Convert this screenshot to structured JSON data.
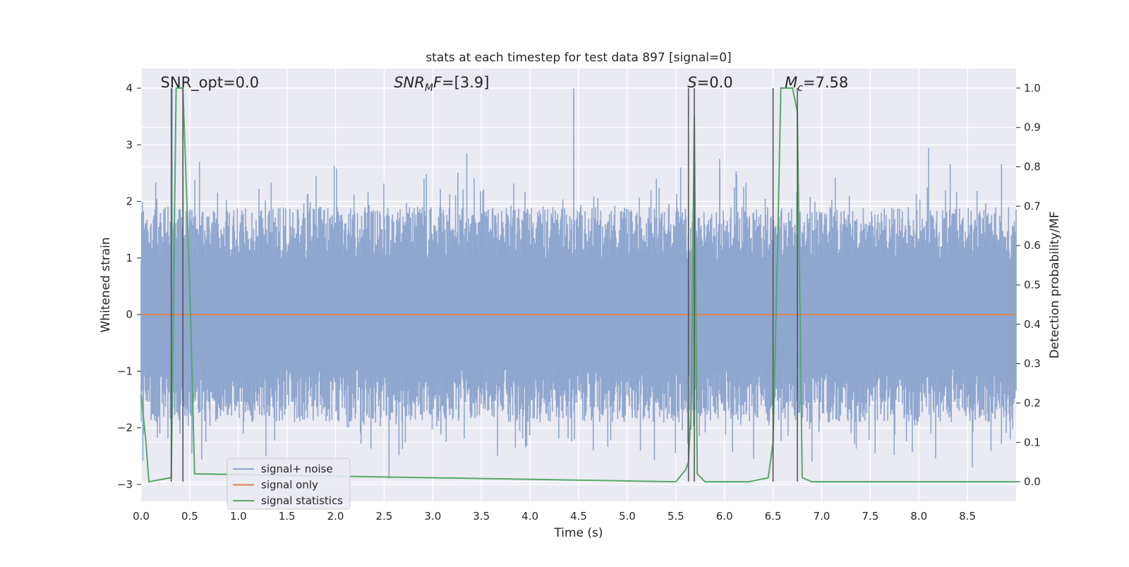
{
  "chart_data": {
    "type": "line",
    "title": "stats at each timestep for test data 897 [signal=0]",
    "xlabel": "Time (s)",
    "ylabel_left": "Whitened strain",
    "ylabel_right": "Detection probability/MF",
    "xlim": [
      0.0,
      9.0
    ],
    "ylim_left": [
      -3.3,
      4.35
    ],
    "ylim_right": [
      -0.05,
      1.05
    ],
    "x_ticks": [
      0.0,
      0.5,
      1.0,
      1.5,
      2.0,
      2.5,
      3.0,
      3.5,
      4.0,
      4.5,
      5.0,
      5.5,
      6.0,
      6.5,
      7.0,
      7.5,
      8.0,
      8.5
    ],
    "x_tick_labels": [
      "0.0",
      "0.5",
      "1.0",
      "1.5",
      "2.0",
      "2.5",
      "3.0",
      "3.5",
      "4.0",
      "4.5",
      "5.0",
      "5.5",
      "6.0",
      "6.5",
      "7.0",
      "7.5",
      "8.0",
      "8.5"
    ],
    "y_left_ticks": [
      -3,
      -2,
      -1,
      0,
      1,
      2,
      3,
      4
    ],
    "y_left_tick_labels": [
      "−3",
      "−2",
      "−1",
      "0",
      "1",
      "2",
      "3",
      "4"
    ],
    "y_right_ticks": [
      0.0,
      0.1,
      0.2,
      0.3,
      0.4,
      0.5,
      0.6,
      0.7,
      0.8,
      0.9,
      1.0
    ],
    "y_right_tick_labels": [
      "0.0",
      "0.1",
      "0.2",
      "0.3",
      "0.4",
      "0.5",
      "0.6",
      "0.7",
      "0.8",
      "0.9",
      "1.0"
    ],
    "grid": true,
    "legend_placement": "lower-left",
    "annotations": [
      {
        "label": "SNR_opt=0.0",
        "x": 0.2
      },
      {
        "label": "SNR_MF=[3.9]",
        "x": 2.6,
        "math": true,
        "base": "SNR",
        "sub": "M",
        "tail": "F=[3.9]"
      },
      {
        "label": "S=0.0",
        "x": 5.62,
        "math": true,
        "base": "S",
        "sub": "",
        "tail": "=0.0"
      },
      {
        "label": "M_c=7.58",
        "x": 6.62,
        "math": true,
        "base": "M",
        "sub": "c",
        "tail": "=7.58"
      }
    ],
    "vertical_markers": [
      0.31,
      0.43,
      5.63,
      5.69,
      6.5,
      6.75
    ],
    "series": [
      {
        "name": "signal+ noise",
        "color": "#8fa6cf",
        "kind": "noise",
        "axis": "left",
        "x_range": [
          0.0,
          9.0
        ],
        "band": [
          -0.95,
          0.95
        ],
        "peaks": [
          {
            "x": 0.32,
            "y": 4.0
          },
          {
            "x": 0.4,
            "y": -2.1
          },
          {
            "x": 0.6,
            "y": 2.7
          },
          {
            "x": 1.05,
            "y": -2.1
          },
          {
            "x": 1.8,
            "y": 2.45
          },
          {
            "x": 2.55,
            "y": -2.9
          },
          {
            "x": 3.35,
            "y": 2.85
          },
          {
            "x": 3.85,
            "y": -2.35
          },
          {
            "x": 4.45,
            "y": 4.0
          },
          {
            "x": 4.65,
            "y": -2.4
          },
          {
            "x": 5.3,
            "y": 2.4
          },
          {
            "x": 5.55,
            "y": 2.6
          },
          {
            "x": 5.95,
            "y": 2.75
          },
          {
            "x": 6.3,
            "y": -2.55
          },
          {
            "x": 6.9,
            "y": -2.6
          },
          {
            "x": 7.55,
            "y": -2.45
          },
          {
            "x": 8.1,
            "y": 2.95
          },
          {
            "x": 8.55,
            "y": -2.7
          },
          {
            "x": 8.85,
            "y": 2.65
          }
        ]
      },
      {
        "name": "signal only",
        "color": "#dd8452",
        "axis": "left",
        "x": [
          0.0,
          9.0
        ],
        "y": [
          0.0,
          0.0
        ]
      },
      {
        "name": "signal statistics",
        "color": "#55a868",
        "axis": "right",
        "x": [
          0.0,
          0.05,
          0.08,
          0.3,
          0.31,
          0.36,
          0.4,
          0.43,
          0.5,
          0.55,
          5.5,
          5.6,
          5.63,
          5.66,
          5.69,
          5.72,
          5.8,
          6.25,
          6.45,
          6.5,
          6.55,
          6.58,
          6.7,
          6.75,
          6.8,
          6.9,
          9.0
        ],
        "y": [
          0.22,
          0.1,
          0.0,
          0.01,
          0.01,
          1.0,
          1.0,
          1.0,
          0.5,
          0.02,
          0.0,
          0.03,
          0.05,
          0.2,
          0.93,
          0.02,
          0.0,
          0.0,
          0.01,
          0.1,
          0.63,
          1.0,
          1.0,
          0.94,
          0.01,
          0.0,
          0.0
        ]
      }
    ]
  }
}
